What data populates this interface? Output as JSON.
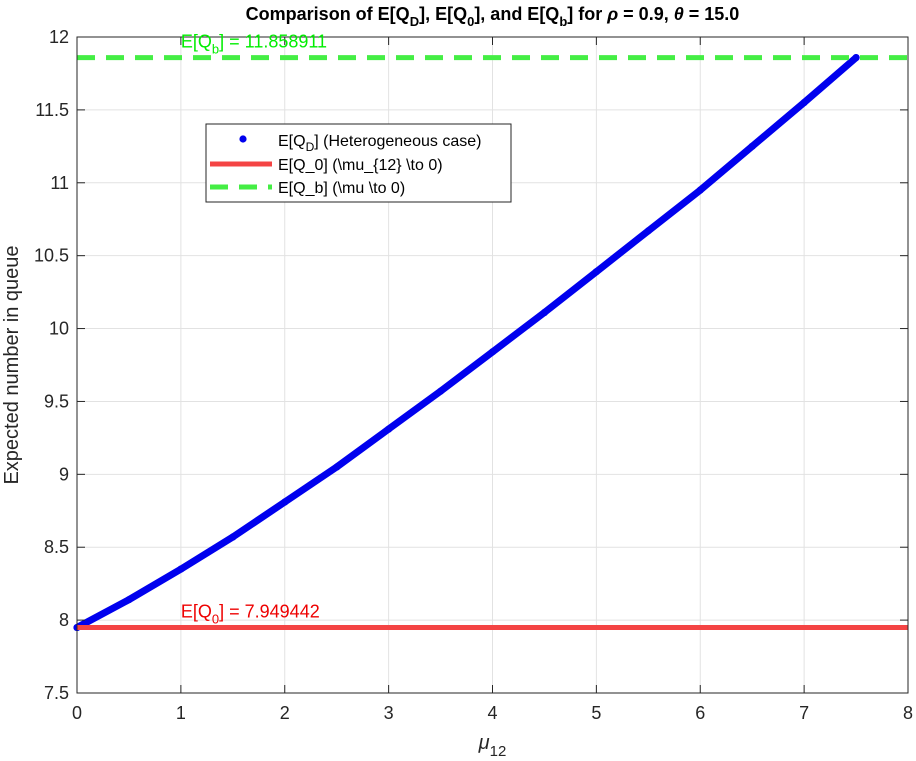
{
  "chart_data": {
    "type": "line",
    "title": {
      "segments": [
        {
          "t": "Comparison of E[Q"
        },
        {
          "t": "D",
          "sub": true
        },
        {
          "t": "], E[Q"
        },
        {
          "t": "0",
          "sub": true
        },
        {
          "t": "], and E[Q"
        },
        {
          "t": "b",
          "sub": true
        },
        {
          "t": "] for "
        },
        {
          "t": "ρ",
          "italic": true
        },
        {
          "t": " = 0.9, "
        },
        {
          "t": "θ",
          "italic": true
        },
        {
          "t": " = 15.0"
        }
      ]
    },
    "xlabel": {
      "main": "μ",
      "sub": "12"
    },
    "ylabel": "Expected number in queue",
    "xlim": [
      0,
      8
    ],
    "ylim": [
      7.5,
      12
    ],
    "xticks": [
      0,
      1,
      2,
      3,
      4,
      5,
      6,
      7,
      8
    ],
    "yticks": [
      7.5,
      8,
      8.5,
      9,
      9.5,
      10,
      10.5,
      11,
      11.5,
      12
    ],
    "ytick_labels": [
      "7.5",
      "8",
      "8.5",
      "9",
      "9.5",
      "10",
      "10.5",
      "11",
      "11.5",
      "12"
    ],
    "grid": true,
    "series": [
      {
        "name": "E[Q_D] (Heterogeneous case)",
        "style": "markers",
        "color": "#0000ee",
        "x": [
          0,
          0.5,
          1,
          1.5,
          2,
          2.5,
          3,
          3.5,
          4,
          4.5,
          5,
          5.5,
          6,
          6.5,
          7,
          7.5
        ],
        "y": [
          7.949,
          8.14,
          8.35,
          8.57,
          8.81,
          9.05,
          9.31,
          9.57,
          9.84,
          10.11,
          10.39,
          10.67,
          10.95,
          11.25,
          11.55,
          11.859
        ]
      },
      {
        "name": "E[Q_0] (\\mu_{12} \\to 0)",
        "style": "solid",
        "color": "#f44444",
        "value": 7.949442
      },
      {
        "name": "E[Q_b] (\\mu \\to 0)",
        "style": "dashed",
        "color": "#44ee44",
        "value": 11.858911
      }
    ],
    "legend": {
      "placement": "upper-left",
      "entries": [
        {
          "segments": [
            {
              "t": "E[Q"
            },
            {
              "t": "D",
              "sub": true
            },
            {
              "t": "] (Heterogeneous case)"
            }
          ]
        },
        {
          "segments": [
            {
              "t": "E[Q_0] (\\mu_{12} \\to 0)"
            }
          ]
        },
        {
          "segments": [
            {
              "t": "E[Q_b] (\\mu \\to 0)"
            }
          ]
        }
      ]
    },
    "annotations": [
      {
        "color": "#00ee00",
        "anchor_x": 1,
        "anchor_y": 11.858911,
        "segments": [
          {
            "t": "E[Q"
          },
          {
            "t": "b",
            "sub": true
          },
          {
            "t": "] = 11.858911"
          }
        ]
      },
      {
        "color": "#ee0000",
        "anchor_x": 1,
        "anchor_y": 7.949442,
        "segments": [
          {
            "t": "E[Q"
          },
          {
            "t": "0",
            "sub": true
          },
          {
            "t": "] = 7.949442"
          }
        ]
      }
    ]
  }
}
